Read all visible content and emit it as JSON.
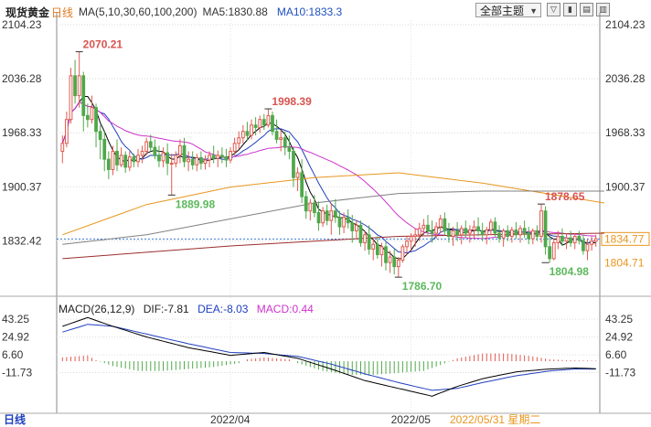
{
  "header": {
    "title": "现货黄金",
    "period": "日线",
    "ma_label": "MA(5,10,30,60,100,200)",
    "ma5": "MA5:1830.88",
    "ma10": "MA10:1833.3",
    "theme": "全部主题",
    "theme_arrow": "▼",
    "tools": [
      "▽",
      "▮",
      "▤",
      "▥"
    ]
  },
  "macd_header": {
    "label": "MACD(26,12,9)",
    "dif": "DIF:-7.81",
    "dea": "DEA:-8.03",
    "macd": "MACD:0.44"
  },
  "bottom_bar": {
    "period": "日线",
    "cursor_date": "2022/05/31 星期二"
  },
  "colors": {
    "up": "#e05a50",
    "down": "#4fa84a",
    "ma5": "#000000",
    "ma10": "#1f3fbf",
    "ma30": "#cc33cc",
    "ma60": "#e8961e",
    "ma100": "#808080",
    "ma200": "#9b2d2d",
    "dif": "#000000",
    "dea": "#1f3fbf"
  },
  "chart_data": [
    {
      "type": "candlestick",
      "title": "现货黄金",
      "x_ticks": [
        "2022/04",
        "2022/05"
      ],
      "y_ticks": [
        2104.23,
        2036.28,
        1968.33,
        1900.37,
        1832.42
      ],
      "y_ticks_left_only": [
        1832.42
      ],
      "y_ticks_right_only": [],
      "ylim": [
        1765,
        2110
      ],
      "price_tags": [
        1834.77,
        1804.71
      ],
      "ref_line": 1834.77,
      "annotations": [
        {
          "text": "2070.21",
          "index": 4,
          "value": 2070.21,
          "kind": "high"
        },
        {
          "text": "1998.39",
          "index": 49,
          "value": 1998.39,
          "kind": "high"
        },
        {
          "text": "1889.98",
          "index": 26,
          "value": 1889.98,
          "kind": "low"
        },
        {
          "text": "1786.70",
          "index": 80,
          "value": 1786.7,
          "kind": "low"
        },
        {
          "text": "1878.65",
          "index": 114,
          "value": 1878.65,
          "kind": "high"
        },
        {
          "text": "1804.98",
          "index": 115,
          "value": 1804.98,
          "kind": "low"
        }
      ],
      "ohlc": [
        [
          1945,
          1965,
          1930,
          1955
        ],
        [
          1955,
          1995,
          1950,
          1985
        ],
        [
          1985,
          2050,
          1980,
          2040
        ],
        [
          2040,
          2060,
          2005,
          2015
        ],
        [
          2015,
          2070,
          2000,
          2040
        ],
        [
          2040,
          2045,
          1970,
          1990
        ],
        [
          1990,
          2005,
          1975,
          1985
        ],
        [
          1985,
          2015,
          1980,
          2000
        ],
        [
          2000,
          2005,
          1950,
          1970
        ],
        [
          1970,
          1978,
          1935,
          1960
        ],
        [
          1960,
          1970,
          1920,
          1935
        ],
        [
          1935,
          1945,
          1910,
          1922
        ],
        [
          1922,
          1952,
          1915,
          1945
        ],
        [
          1945,
          1960,
          1920,
          1928
        ],
        [
          1928,
          1950,
          1925,
          1940
        ],
        [
          1940,
          1945,
          1918,
          1925
        ],
        [
          1925,
          1945,
          1920,
          1938
        ],
        [
          1938,
          1942,
          1925,
          1932
        ],
        [
          1932,
          1948,
          1925,
          1940
        ],
        [
          1940,
          1952,
          1930,
          1945
        ],
        [
          1945,
          1962,
          1940,
          1957
        ],
        [
          1957,
          1966,
          1945,
          1950
        ],
        [
          1950,
          1960,
          1935,
          1940
        ],
        [
          1940,
          1952,
          1925,
          1933
        ],
        [
          1933,
          1950,
          1925,
          1943
        ],
        [
          1943,
          1955,
          1915,
          1930
        ],
        [
          1930,
          1942,
          1890,
          1930
        ],
        [
          1930,
          1945,
          1925,
          1940
        ],
        [
          1940,
          1960,
          1930,
          1952
        ],
        [
          1952,
          1962,
          1925,
          1932
        ],
        [
          1932,
          1945,
          1920,
          1935
        ],
        [
          1935,
          1945,
          1922,
          1928
        ],
        [
          1928,
          1942,
          1920,
          1937
        ],
        [
          1937,
          1945,
          1922,
          1930
        ],
        [
          1930,
          1940,
          1922,
          1934
        ],
        [
          1934,
          1945,
          1925,
          1940
        ],
        [
          1940,
          1952,
          1930,
          1936
        ],
        [
          1936,
          1946,
          1925,
          1940
        ],
        [
          1940,
          1950,
          1930,
          1938
        ],
        [
          1938,
          1948,
          1925,
          1934
        ],
        [
          1934,
          1950,
          1930,
          1945
        ],
        [
          1945,
          1962,
          1940,
          1955
        ],
        [
          1955,
          1970,
          1948,
          1962
        ],
        [
          1962,
          1978,
          1955,
          1970
        ],
        [
          1970,
          1982,
          1958,
          1965
        ],
        [
          1965,
          1985,
          1960,
          1978
        ],
        [
          1978,
          1988,
          1965,
          1975
        ],
        [
          1975,
          1990,
          1968,
          1985
        ],
        [
          1985,
          1992,
          1972,
          1978
        ],
        [
          1978,
          1998,
          1975,
          1990
        ],
        [
          1990,
          1995,
          1965,
          1970
        ],
        [
          1970,
          1985,
          1955,
          1960
        ],
        [
          1960,
          1972,
          1945,
          1962
        ],
        [
          1962,
          1970,
          1940,
          1950
        ],
        [
          1950,
          1965,
          1935,
          1945
        ],
        [
          1945,
          1950,
          1900,
          1912
        ],
        [
          1912,
          1925,
          1895,
          1918
        ],
        [
          1918,
          1935,
          1880,
          1888
        ],
        [
          1888,
          1895,
          1860,
          1870
        ],
        [
          1870,
          1885,
          1858,
          1880
        ],
        [
          1880,
          1890,
          1862,
          1868
        ],
        [
          1868,
          1882,
          1845,
          1855
        ],
        [
          1855,
          1875,
          1850,
          1870
        ],
        [
          1870,
          1878,
          1852,
          1858
        ],
        [
          1858,
          1880,
          1840,
          1870
        ],
        [
          1870,
          1885,
          1855,
          1862
        ],
        [
          1862,
          1870,
          1840,
          1850
        ],
        [
          1850,
          1868,
          1842,
          1862
        ],
        [
          1862,
          1872,
          1848,
          1855
        ],
        [
          1855,
          1865,
          1830,
          1845
        ],
        [
          1845,
          1858,
          1835,
          1852
        ],
        [
          1852,
          1858,
          1825,
          1830
        ],
        [
          1830,
          1845,
          1820,
          1840
        ],
        [
          1840,
          1852,
          1815,
          1822
        ],
        [
          1822,
          1835,
          1808,
          1828
        ],
        [
          1828,
          1838,
          1810,
          1815
        ],
        [
          1815,
          1830,
          1800,
          1825
        ],
        [
          1825,
          1832,
          1795,
          1805
        ],
        [
          1805,
          1820,
          1792,
          1812
        ],
        [
          1812,
          1822,
          1790,
          1800
        ],
        [
          1800,
          1812,
          1787,
          1808
        ],
        [
          1808,
          1828,
          1805,
          1825
        ],
        [
          1825,
          1838,
          1815,
          1832
        ],
        [
          1832,
          1842,
          1820,
          1838
        ],
        [
          1838,
          1848,
          1825,
          1840
        ],
        [
          1840,
          1855,
          1832,
          1848
        ],
        [
          1848,
          1860,
          1838,
          1852
        ],
        [
          1852,
          1865,
          1840,
          1845
        ],
        [
          1845,
          1858,
          1830,
          1842
        ],
        [
          1842,
          1856,
          1835,
          1850
        ],
        [
          1850,
          1865,
          1842,
          1860
        ],
        [
          1860,
          1868,
          1840,
          1845
        ],
        [
          1845,
          1855,
          1830,
          1838
        ],
        [
          1838,
          1850,
          1826,
          1845
        ],
        [
          1845,
          1856,
          1832,
          1840
        ],
        [
          1840,
          1852,
          1828,
          1848
        ],
        [
          1848,
          1858,
          1836,
          1842
        ],
        [
          1842,
          1852,
          1830,
          1846
        ],
        [
          1846,
          1858,
          1835,
          1850
        ],
        [
          1850,
          1862,
          1838,
          1845
        ],
        [
          1845,
          1855,
          1832,
          1840
        ],
        [
          1840,
          1850,
          1828,
          1846
        ],
        [
          1846,
          1860,
          1840,
          1856
        ],
        [
          1856,
          1862,
          1838,
          1842
        ],
        [
          1842,
          1852,
          1830,
          1836
        ],
        [
          1836,
          1848,
          1825,
          1845
        ],
        [
          1845,
          1852,
          1832,
          1838
        ],
        [
          1838,
          1850,
          1830,
          1846
        ],
        [
          1846,
          1856,
          1835,
          1840
        ],
        [
          1840,
          1852,
          1830,
          1848
        ],
        [
          1848,
          1858,
          1836,
          1842
        ],
        [
          1842,
          1850,
          1828,
          1835
        ],
        [
          1835,
          1848,
          1828,
          1845
        ],
        [
          1845,
          1852,
          1832,
          1838
        ],
        [
          1838,
          1878,
          1830,
          1870
        ],
        [
          1870,
          1876,
          1815,
          1825
        ],
        [
          1825,
          1838,
          1805,
          1810
        ],
        [
          1810,
          1835,
          1808,
          1830
        ],
        [
          1830,
          1845,
          1822,
          1838
        ],
        [
          1838,
          1848,
          1826,
          1832
        ],
        [
          1832,
          1842,
          1822,
          1836
        ],
        [
          1836,
          1845,
          1825,
          1830
        ],
        [
          1830,
          1842,
          1822,
          1838
        ],
        [
          1838,
          1845,
          1828,
          1833
        ],
        [
          1833,
          1840,
          1815,
          1820
        ],
        [
          1820,
          1835,
          1808,
          1828
        ],
        [
          1828,
          1838,
          1820,
          1832
        ],
        [
          1832,
          1840,
          1825,
          1835
        ]
      ],
      "ma_series": [
        {
          "name": "MA5",
          "color_key": "ma5",
          "period": 5
        },
        {
          "name": "MA10",
          "color_key": "ma10",
          "period": 10
        },
        {
          "name": "MA30",
          "color_key": "ma30",
          "period": 30
        },
        {
          "name": "MA60",
          "color_key": "ma60",
          "points": [
            [
              0,
              1840
            ],
            [
              20,
              1878
            ],
            [
              40,
              1900
            ],
            [
              60,
              1912
            ],
            [
              80,
              1918
            ],
            [
              100,
              1905
            ],
            [
              129,
              1880
            ]
          ]
        },
        {
          "name": "MA100",
          "color_key": "ma100",
          "points": [
            [
              0,
              1828
            ],
            [
              20,
              1840
            ],
            [
              40,
              1860
            ],
            [
              60,
              1880
            ],
            [
              80,
              1892
            ],
            [
              100,
              1895
            ],
            [
              129,
              1895
            ]
          ]
        },
        {
          "name": "MA200",
          "color_key": "ma200",
          "points": [
            [
              0,
              1810
            ],
            [
              20,
              1818
            ],
            [
              40,
              1826
            ],
            [
              60,
              1832
            ],
            [
              80,
              1838
            ],
            [
              100,
              1840
            ],
            [
              129,
              1842
            ]
          ]
        }
      ]
    },
    {
      "type": "macd",
      "title": "MACD(26,12,9)",
      "y_ticks": [
        43.25,
        24.92,
        6.6,
        -11.73
      ],
      "ylim": [
        -48,
        50
      ],
      "dif_points": [
        [
          0,
          36
        ],
        [
          6,
          45
        ],
        [
          12,
          36
        ],
        [
          20,
          25
        ],
        [
          30,
          14
        ],
        [
          40,
          6
        ],
        [
          48,
          9
        ],
        [
          56,
          3
        ],
        [
          64,
          -8
        ],
        [
          72,
          -20
        ],
        [
          80,
          -28
        ],
        [
          88,
          -36
        ],
        [
          94,
          -26
        ],
        [
          100,
          -18
        ],
        [
          108,
          -11
        ],
        [
          116,
          -8
        ],
        [
          122,
          -7
        ],
        [
          129,
          -8
        ]
      ],
      "dea_points": [
        [
          0,
          30
        ],
        [
          6,
          38
        ],
        [
          12,
          36
        ],
        [
          20,
          28
        ],
        [
          30,
          18
        ],
        [
          40,
          9
        ],
        [
          48,
          8
        ],
        [
          56,
          5
        ],
        [
          64,
          -3
        ],
        [
          72,
          -13
        ],
        [
          80,
          -22
        ],
        [
          88,
          -30
        ],
        [
          94,
          -28
        ],
        [
          100,
          -22
        ],
        [
          108,
          -15
        ],
        [
          116,
          -10
        ],
        [
          122,
          -8
        ],
        [
          129,
          -8
        ]
      ],
      "histogram_points": [
        [
          0,
          4
        ],
        [
          6,
          6
        ],
        [
          8,
          1
        ],
        [
          12,
          -5
        ],
        [
          18,
          -10
        ],
        [
          24,
          -10
        ],
        [
          30,
          -8
        ],
        [
          36,
          -6
        ],
        [
          42,
          -2
        ],
        [
          44,
          2
        ],
        [
          48,
          4
        ],
        [
          54,
          2
        ],
        [
          56,
          -2
        ],
        [
          62,
          -10
        ],
        [
          68,
          -14
        ],
        [
          74,
          -14
        ],
        [
          80,
          -12
        ],
        [
          86,
          -10
        ],
        [
          90,
          -4
        ],
        [
          94,
          3
        ],
        [
          100,
          8
        ],
        [
          106,
          8
        ],
        [
          112,
          5
        ],
        [
          116,
          2
        ],
        [
          120,
          1
        ],
        [
          129,
          0.4
        ]
      ]
    }
  ]
}
